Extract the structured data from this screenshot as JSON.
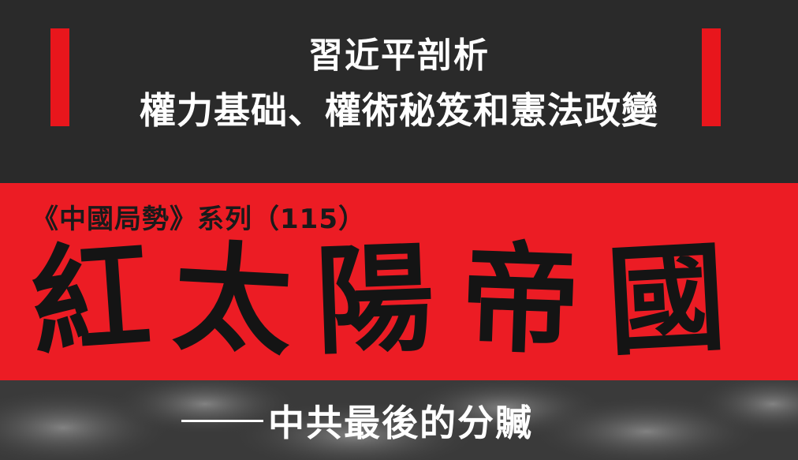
{
  "cover": {
    "title_line_1": "習近平剖析",
    "title_line_2": "權力基础、權術秘笈和憲法政變",
    "series_label": "《中國局勢》系列（115）",
    "main_title_chars": [
      "紅",
      "太",
      "陽",
      "帝",
      "國"
    ],
    "subtitle": "中共最後的分贓"
  },
  "colors": {
    "accent_red": "#ec1c24",
    "dark_band": "#2a2a2a",
    "text_white": "#ffffff",
    "ink_black": "#141414"
  }
}
